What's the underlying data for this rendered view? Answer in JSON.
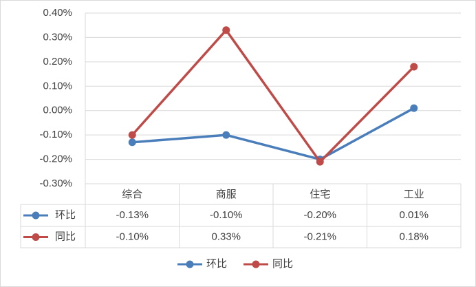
{
  "chart_data": {
    "type": "line",
    "categories": [
      "综合",
      "商服",
      "住宅",
      "工业"
    ],
    "series": [
      {
        "name": "环比",
        "color": "#4a7ebb",
        "values": [
          -0.13,
          -0.1,
          -0.2,
          0.01
        ],
        "value_labels": [
          "-0.13%",
          "-0.10%",
          "-0.20%",
          "0.01%"
        ]
      },
      {
        "name": "同比",
        "color": "#be4b48",
        "values": [
          -0.1,
          0.33,
          -0.21,
          0.18
        ],
        "value_labels": [
          "-0.10%",
          "0.33%",
          "-0.21%",
          "0.18%"
        ]
      }
    ],
    "ylim": [
      -0.3,
      0.4
    ],
    "yticks": [
      {
        "value": -0.3,
        "label": "-0.30%"
      },
      {
        "value": -0.2,
        "label": "-0.20%"
      },
      {
        "value": -0.1,
        "label": "-0.10%"
      },
      {
        "value": 0,
        "label": "0.00%"
      },
      {
        "value": 0.1,
        "label": "0.10%"
      },
      {
        "value": 0.2,
        "label": "0.20%"
      },
      {
        "value": 0.3,
        "label": "0.30%"
      },
      {
        "value": 0.4,
        "label": "0.40%"
      }
    ],
    "grid": true,
    "legend": "bottom"
  }
}
